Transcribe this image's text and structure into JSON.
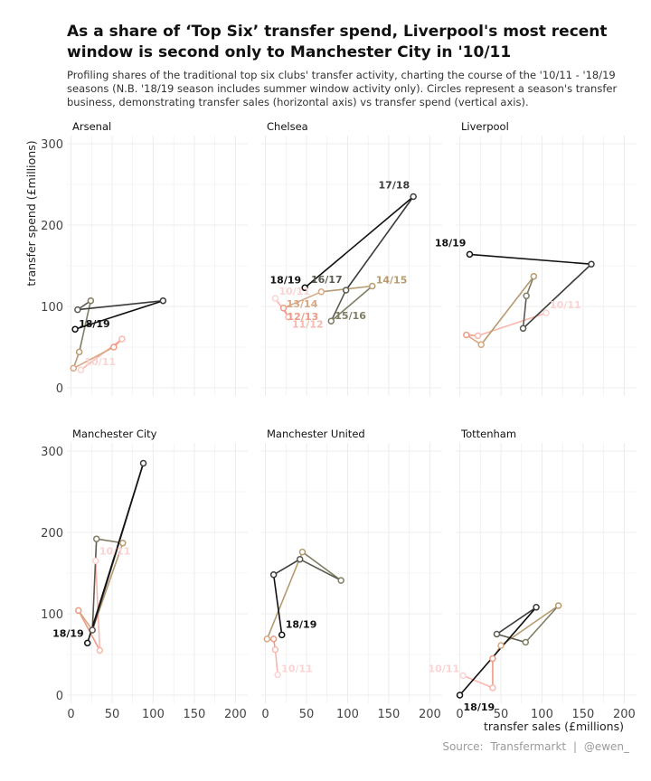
{
  "header": {
    "title": "As a share of ‘Top Six’ transfer spend, Liverpool's most recent window is second only to Manchester City in '10/11",
    "subtitle": "Profiling shares of the traditional top six clubs' transfer activity, charting the course of the '10/11 - '18/19 seasons (N.B. '18/19 season includes summer window activity only). Circles represent a season's transfer business, demonstrating transfer sales (horizontal axis) vs transfer spend (vertical axis)."
  },
  "caption": {
    "source_label": "Source:",
    "source": "Transfermarkt",
    "separator": "|",
    "handle": "@ewen_"
  },
  "colors": {
    "seasons": {
      "10/11": "#fbd3d3",
      "11/12": "#f9b7ae",
      "12/13": "#ee9b86",
      "13/14": "#d7a883",
      "14/15": "#b69a70",
      "15/16": "#7f7d63",
      "16/17": "#5a5a50",
      "17/18": "#3b3b39",
      "18/19": "#111111"
    },
    "grid": "#ececec",
    "axis_text": "#444444"
  },
  "chart_data": {
    "type": "scatter",
    "connected": true,
    "xlabel": "transfer sales (£millions)",
    "ylabel": "transfer spend (£millions)",
    "xlim": [
      -5,
      215
    ],
    "ylim": [
      -10,
      310
    ],
    "x_ticks": [
      0,
      50,
      100,
      150,
      200
    ],
    "y_ticks": [
      0,
      100,
      200,
      300
    ],
    "grid": true,
    "legend": "none",
    "seasons": [
      "10/11",
      "11/12",
      "12/13",
      "13/14",
      "14/15",
      "15/16",
      "16/17",
      "17/18",
      "18/19"
    ],
    "panels": [
      {
        "club": "Arsenal",
        "points": [
          [
            12,
            22
          ],
          [
            62,
            60
          ],
          [
            52,
            50
          ],
          [
            3,
            24
          ],
          [
            10,
            44
          ],
          [
            24,
            107
          ],
          [
            8,
            96
          ],
          [
            112,
            107
          ],
          [
            5,
            72
          ]
        ],
        "labels": {
          "10/11": [
            10,
            4
          ],
          "18/19": [
            10,
            1
          ]
        }
      },
      {
        "club": "Chelsea",
        "points": [
          [
            12,
            110
          ],
          [
            28,
            87
          ],
          [
            22,
            98
          ],
          [
            68,
            118
          ],
          [
            130,
            125
          ],
          [
            80,
            82
          ],
          [
            98,
            120
          ],
          [
            180,
            235
          ],
          [
            48,
            123
          ]
        ],
        "labels": {
          "10/11": [
            4,
            3
          ],
          "11/12": [
            10,
            -1
          ],
          "12/13": [
            4,
            -2
          ],
          "13/14": [
            -7,
            -6
          ],
          "14/15": [
            10,
            2
          ],
          "15/16": [
            10,
            1
          ],
          "16/17": [
            -10,
            7
          ],
          "17/18": [
            -7,
            8
          ],
          "18/19": [
            -5,
            4
          ]
        }
      },
      {
        "club": "Liverpool",
        "points": [
          [
            105,
            92
          ],
          [
            22,
            64
          ],
          [
            8,
            65
          ],
          [
            26,
            53
          ],
          [
            90,
            137
          ],
          [
            81,
            113
          ],
          [
            77,
            73
          ],
          [
            160,
            152
          ],
          [
            12,
            164
          ]
        ],
        "labels": {
          "10/11": [
            10,
            4
          ],
          "18/19": [
            -10,
            8
          ]
        }
      },
      {
        "club": "Manchester City",
        "points": [
          [
            30,
            165
          ],
          [
            35,
            55
          ],
          [
            9,
            104
          ],
          [
            26,
            80
          ],
          [
            63,
            187
          ],
          [
            31,
            192
          ],
          [
            26,
            80
          ],
          [
            88,
            285
          ],
          [
            20,
            64
          ]
        ],
        "labels": {
          "10/11": [
            4,
            6
          ],
          "18/19": [
            -14,
            6
          ]
        }
      },
      {
        "club": "Manchester United",
        "points": [
          [
            15,
            25
          ],
          [
            12,
            56
          ],
          [
            10,
            69
          ],
          [
            2,
            69
          ],
          [
            45,
            176
          ],
          [
            92,
            141
          ],
          [
            42,
            167
          ],
          [
            10,
            148
          ],
          [
            20,
            74
          ]
        ],
        "labels": {
          "10/11": [
            6,
            2
          ],
          "18/19": [
            8,
            7
          ]
        }
      },
      {
        "club": "Tottenham",
        "points": [
          [
            4,
            24
          ],
          [
            40,
            9
          ],
          [
            40,
            45
          ],
          [
            50,
            61
          ],
          [
            120,
            110
          ],
          [
            80,
            65
          ],
          [
            45,
            75
          ],
          [
            93,
            108
          ],
          [
            0,
            0
          ]
        ],
        "labels": {
          "10/11": [
            -7,
            3
          ],
          "18/19": [
            10,
            -6
          ]
        }
      }
    ]
  }
}
